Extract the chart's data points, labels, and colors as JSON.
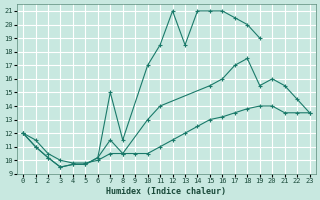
{
  "xlabel": "Humidex (Indice chaleur)",
  "bg_color": "#c8e8e0",
  "grid_color": "#ffffff",
  "line_color": "#1a7a6a",
  "xlim": [
    -0.5,
    23.5
  ],
  "ylim": [
    9,
    21.5
  ],
  "xticks": [
    0,
    1,
    2,
    3,
    4,
    5,
    6,
    7,
    8,
    9,
    10,
    11,
    12,
    13,
    14,
    15,
    16,
    17,
    18,
    19,
    20,
    21,
    22,
    23
  ],
  "yticks": [
    9,
    10,
    11,
    12,
    13,
    14,
    15,
    16,
    17,
    18,
    19,
    20,
    21
  ],
  "series": [
    {
      "x": [
        0,
        1,
        2,
        3,
        4,
        5,
        6,
        7,
        8,
        10,
        11,
        12,
        13,
        14,
        15,
        16,
        17,
        18,
        19
      ],
      "y": [
        12,
        11,
        10.2,
        9.5,
        9.7,
        9.7,
        10.2,
        15,
        11.5,
        17,
        18.5,
        21,
        18.5,
        21,
        21,
        21,
        20.5,
        20,
        19
      ]
    },
    {
      "x": [
        0,
        1,
        2,
        3,
        4,
        5,
        6,
        7,
        8,
        10,
        11,
        15,
        16,
        17,
        18,
        19,
        20,
        21,
        22,
        23
      ],
      "y": [
        12,
        11,
        10.2,
        9.5,
        9.7,
        9.7,
        10.2,
        11.5,
        10.5,
        13,
        14,
        15.5,
        16,
        17,
        17.5,
        15.5,
        16,
        15.5,
        14.5,
        13.5
      ]
    },
    {
      "x": [
        0,
        1,
        2,
        3,
        4,
        5,
        6,
        7,
        8,
        9,
        10,
        11,
        12,
        13,
        14,
        15,
        16,
        17,
        18,
        19,
        20,
        21,
        22,
        23
      ],
      "y": [
        12,
        11.5,
        10.5,
        10,
        9.8,
        9.8,
        10,
        10.5,
        10.5,
        10.5,
        10.5,
        11,
        11.5,
        12,
        12.5,
        13,
        13.2,
        13.5,
        13.8,
        14,
        14,
        13.5,
        13.5,
        13.5
      ]
    }
  ]
}
